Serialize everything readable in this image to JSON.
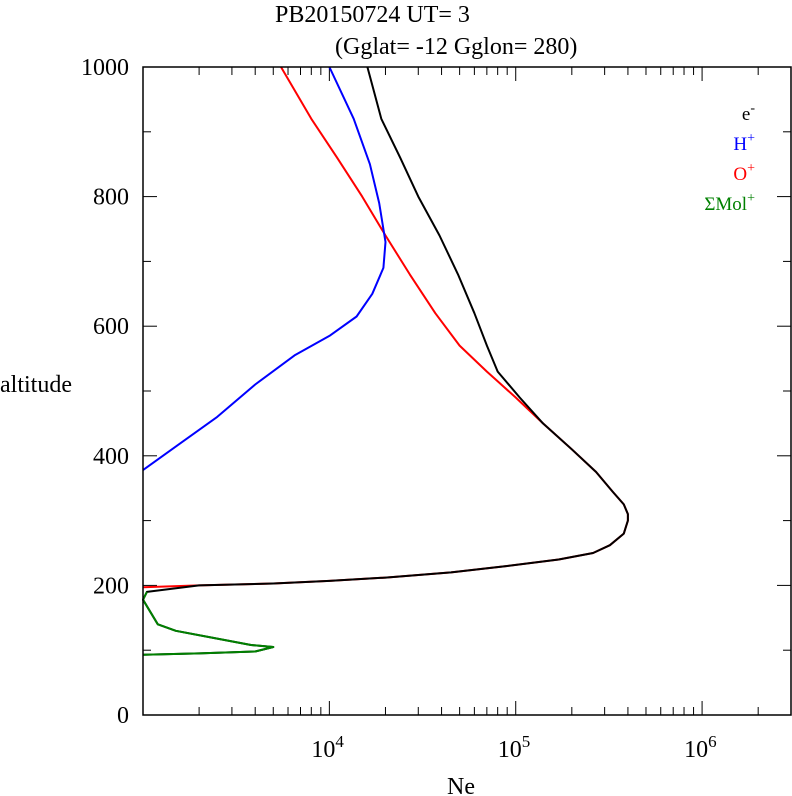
{
  "chart_data": {
    "type": "line",
    "title_line1": "PB20150724   UT=  3",
    "title_line2": "(Gglat= -12   Gglon=  280)",
    "xlabel": "Ne",
    "ylabel": "altitude",
    "xscale": "log",
    "xlim": [
      1000,
      3000000
    ],
    "ylim": [
      0,
      1000
    ],
    "x_ticks": [
      {
        "value": 10000,
        "base": "10",
        "exp": "4"
      },
      {
        "value": 100000,
        "base": "10",
        "exp": "5"
      },
      {
        "value": 1000000,
        "base": "10",
        "exp": "6"
      }
    ],
    "y_ticks": [
      0,
      200,
      400,
      600,
      800,
      1000
    ],
    "legend_position": "top-right",
    "legend": [
      {
        "base": "e",
        "sup": "-",
        "color": "#000000"
      },
      {
        "base": "H",
        "sup": "+",
        "color": "#0000ff"
      },
      {
        "base": "O",
        "sup": "+",
        "color": "#ff0000"
      },
      {
        "base": "ΣMol",
        "sup": "+",
        "color": "#008000"
      }
    ],
    "series": [
      {
        "name": "O+",
        "color": "#ff0000",
        "points": [
          [
            1000,
            197
          ],
          [
            2000,
            200
          ],
          [
            5000,
            203
          ],
          [
            10000,
            207
          ],
          [
            20000,
            212
          ],
          [
            45000,
            220
          ],
          [
            90000,
            230
          ],
          [
            170000,
            240
          ],
          [
            260000,
            250
          ],
          [
            320000,
            262
          ],
          [
            380000,
            280
          ],
          [
            400000,
            300
          ],
          [
            400000,
            310
          ],
          [
            380000,
            325
          ],
          [
            330000,
            345
          ],
          [
            270000,
            375
          ],
          [
            200000,
            410
          ],
          [
            140000,
            450
          ],
          [
            100000,
            490
          ],
          [
            70000,
            530
          ],
          [
            50000,
            570
          ],
          [
            37000,
            620
          ],
          [
            27000,
            680
          ],
          [
            20000,
            740
          ],
          [
            15000,
            800
          ],
          [
            11000,
            860
          ],
          [
            8000,
            920
          ],
          [
            5500,
            1000
          ]
        ]
      },
      {
        "name": "H+",
        "color": "#0000ff",
        "points": [
          [
            1000,
            378
          ],
          [
            1600,
            420
          ],
          [
            2500,
            460
          ],
          [
            4000,
            510
          ],
          [
            6500,
            555
          ],
          [
            10000,
            585
          ],
          [
            14000,
            615
          ],
          [
            17000,
            650
          ],
          [
            19500,
            690
          ],
          [
            20000,
            730
          ],
          [
            18500,
            790
          ],
          [
            16500,
            850
          ],
          [
            13500,
            920
          ],
          [
            10000,
            1000
          ]
        ]
      },
      {
        "name": "e-",
        "color": "#000000",
        "points": [
          [
            1000,
            93
          ],
          [
            2000,
            95
          ],
          [
            4000,
            98
          ],
          [
            5000,
            105
          ],
          [
            3800,
            108
          ],
          [
            1500,
            130
          ],
          [
            1200,
            140
          ],
          [
            1000,
            178
          ],
          [
            1050,
            190
          ],
          [
            2000,
            200
          ],
          [
            5000,
            203
          ],
          [
            10000,
            207
          ],
          [
            20000,
            212
          ],
          [
            45000,
            220
          ],
          [
            90000,
            230
          ],
          [
            170000,
            240
          ],
          [
            260000,
            250
          ],
          [
            320000,
            262
          ],
          [
            380000,
            280
          ],
          [
            400000,
            300
          ],
          [
            400000,
            310
          ],
          [
            380000,
            325
          ],
          [
            330000,
            345
          ],
          [
            270000,
            375
          ],
          [
            200000,
            410
          ],
          [
            140000,
            450
          ],
          [
            105000,
            490
          ],
          [
            80000,
            530
          ],
          [
            70000,
            570
          ],
          [
            60000,
            620
          ],
          [
            49000,
            680
          ],
          [
            39000,
            740
          ],
          [
            30000,
            800
          ],
          [
            24000,
            860
          ],
          [
            19000,
            920
          ],
          [
            16000,
            1000
          ]
        ]
      },
      {
        "name": "ΣMol+",
        "color": "#008000",
        "points": [
          [
            1000,
            93
          ],
          [
            2000,
            95
          ],
          [
            4000,
            98
          ],
          [
            5000,
            105
          ],
          [
            3800,
            108
          ],
          [
            1500,
            130
          ],
          [
            1200,
            140
          ],
          [
            1000,
            178
          ],
          [
            1050,
            190
          ]
        ]
      }
    ]
  }
}
